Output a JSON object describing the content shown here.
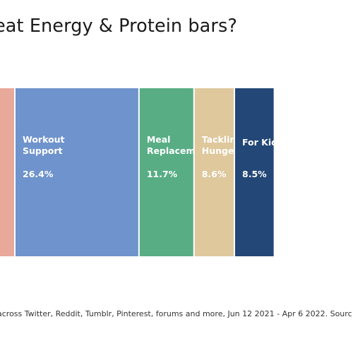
{
  "chart_data": {
    "type": "bar",
    "orientation": "horizontal-stacked",
    "title": "eat Energy & Protein bars?",
    "categories": [
      "",
      "Workout Support",
      "Meal Replacement",
      "Tackling Hunger",
      "For Kids"
    ],
    "series": [
      {
        "values": [
          null,
          26.4,
          11.7,
          8.6,
          8.5
        ]
      }
    ],
    "value_labels": [
      "",
      "26.4%",
      "11.7%",
      "8.6%",
      "8.5%"
    ],
    "label_lines": [
      [],
      [
        "Workout",
        "Support"
      ],
      [
        "Meal",
        "Replacement"
      ],
      [
        "Tackling",
        "Hunger"
      ],
      [
        "For Kids"
      ]
    ],
    "colors": [
      "#E8A99A",
      "#6F93CC",
      "#58AD85",
      "#DEC89C",
      "#234776"
    ],
    "grid": false,
    "legend": "none"
  },
  "source_text": "across Twitter, Reddit, Tumblr, Pinterest, forums and more, Jun 12 2021 - Apr 6 2022. Sourc"
}
